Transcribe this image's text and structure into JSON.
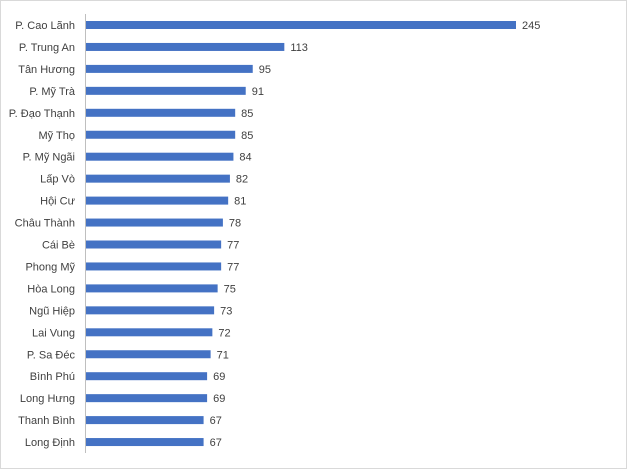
{
  "chart_data": {
    "type": "bar",
    "orientation": "horizontal",
    "categories": [
      "P. Cao Lãnh",
      "P. Trung An",
      "Tân Hương",
      "P. Mỹ Trà",
      "P. Đạo Thạnh",
      "Mỹ Thọ",
      "P. Mỹ Ngãi",
      "Lấp Vò",
      "Hội Cư",
      "Châu Thành",
      "Cái Bè",
      "Phong Mỹ",
      "Hòa Long",
      "Ngũ Hiệp",
      "Lai Vung",
      "P. Sa Đéc",
      "Bình Phú",
      "Long Hưng",
      "Thanh Bình",
      "Long Định"
    ],
    "values": [
      245,
      113,
      95,
      91,
      85,
      85,
      84,
      82,
      81,
      78,
      77,
      77,
      75,
      73,
      72,
      71,
      69,
      69,
      67,
      67
    ],
    "xlim": [
      0,
      245
    ],
    "grid": false,
    "data_labels": true,
    "bar_color": "#4472c4"
  }
}
